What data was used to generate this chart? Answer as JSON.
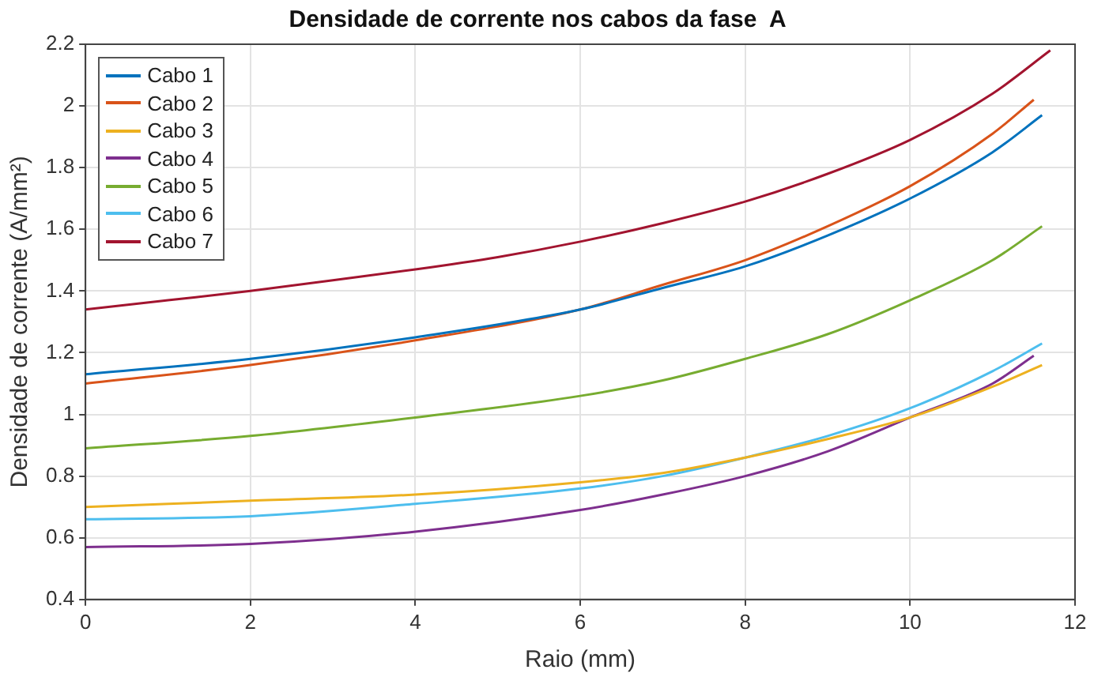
{
  "chart_data": {
    "type": "line",
    "title": "Densidade de corrente nos cabos da fase  A",
    "xlabel": "Raio (mm)",
    "ylabel": "Densidade de corrente (A/mm²)",
    "xlim": [
      0,
      12
    ],
    "xticks": [
      0,
      2,
      4,
      6,
      8,
      10,
      12
    ],
    "ylim": [
      0.4,
      2.2
    ],
    "yticks": [
      0.4,
      0.6,
      0.8,
      1,
      1.2,
      1.4,
      1.6,
      1.8,
      2,
      2.2
    ],
    "grid": true,
    "legend": "top left",
    "marker": "none",
    "line_style": "solid",
    "series": [
      {
        "name": "Cabo 1",
        "color": "#0072bd",
        "x": [
          0,
          2,
          4,
          6,
          7,
          8,
          9,
          10,
          11,
          11.6
        ],
        "values": [
          1.13,
          1.18,
          1.25,
          1.34,
          1.41,
          1.48,
          1.58,
          1.7,
          1.85,
          1.97
        ]
      },
      {
        "name": "Cabo 2",
        "color": "#d95319",
        "x": [
          0,
          2,
          4,
          6,
          7,
          8,
          9,
          10,
          11,
          11.5
        ],
        "values": [
          1.1,
          1.16,
          1.24,
          1.34,
          1.42,
          1.5,
          1.61,
          1.74,
          1.91,
          2.02
        ]
      },
      {
        "name": "Cabo 3",
        "color": "#edb120",
        "x": [
          0,
          2,
          4,
          6,
          7,
          8,
          9,
          10,
          11,
          11.6
        ],
        "values": [
          0.7,
          0.72,
          0.74,
          0.78,
          0.81,
          0.86,
          0.92,
          0.99,
          1.09,
          1.16
        ]
      },
      {
        "name": "Cabo 4",
        "color": "#7e2f8e",
        "x": [
          0,
          2,
          4,
          6,
          7,
          8,
          9,
          10,
          11,
          11.5
        ],
        "values": [
          0.57,
          0.58,
          0.62,
          0.69,
          0.74,
          0.8,
          0.88,
          0.99,
          1.1,
          1.19
        ]
      },
      {
        "name": "Cabo 5",
        "color": "#77ac30",
        "x": [
          0,
          2,
          4,
          6,
          7,
          8,
          9,
          10,
          11,
          11.6
        ],
        "values": [
          0.89,
          0.93,
          0.99,
          1.06,
          1.11,
          1.18,
          1.26,
          1.37,
          1.5,
          1.61
        ]
      },
      {
        "name": "Cabo 6",
        "color": "#4dbeee",
        "x": [
          0,
          2,
          4,
          6,
          7,
          8,
          9,
          10,
          11,
          11.6
        ],
        "values": [
          0.66,
          0.67,
          0.71,
          0.76,
          0.8,
          0.86,
          0.93,
          1.02,
          1.14,
          1.23
        ]
      },
      {
        "name": "Cabo 7",
        "color": "#a2142f",
        "x": [
          0,
          1,
          2,
          3,
          4,
          5,
          6,
          7,
          8,
          9,
          10,
          11,
          11.7
        ],
        "values": [
          1.34,
          1.37,
          1.4,
          1.435,
          1.47,
          1.51,
          1.56,
          1.62,
          1.69,
          1.78,
          1.89,
          2.04,
          2.18
        ]
      }
    ]
  }
}
